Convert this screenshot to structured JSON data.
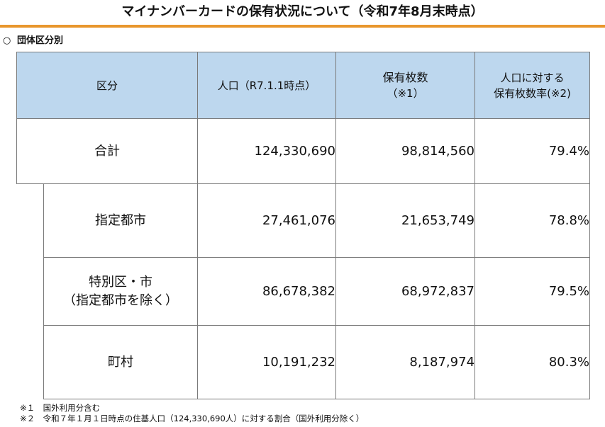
{
  "title": "マイナンバーカードの保有状況について（令和7年8月末時点）",
  "section": {
    "mark": "○",
    "label": "団体区分別"
  },
  "table": {
    "headers": {
      "category": "区分",
      "population": "人口（R7.1.1時点）",
      "holders_line1": "保有枚数",
      "holders_line2": "（※1）",
      "rate_line1": "人口に対する",
      "rate_line2": "保有枚数率(※2)"
    },
    "rows": [
      {
        "label": "合計",
        "label2": "",
        "population": "124,330,690",
        "holders": "98,814,560",
        "rate": "79.4%"
      },
      {
        "label": "指定都市",
        "label2": "",
        "population": "27,461,076",
        "holders": "21,653,749",
        "rate": "78.8%"
      },
      {
        "label": "特別区・市",
        "label2": "（指定都市を除く）",
        "population": "86,678,382",
        "holders": "68,972,837",
        "rate": "79.5%"
      },
      {
        "label": "町村",
        "label2": "",
        "population": "10,191,232",
        "holders": "8,187,974",
        "rate": "80.3%"
      }
    ]
  },
  "notes": [
    "※１　国外利用分含む",
    "※２　令和７年１月１日時点の住基人口（124,330,690人）に対する割合（国外利用分除く）"
  ]
}
